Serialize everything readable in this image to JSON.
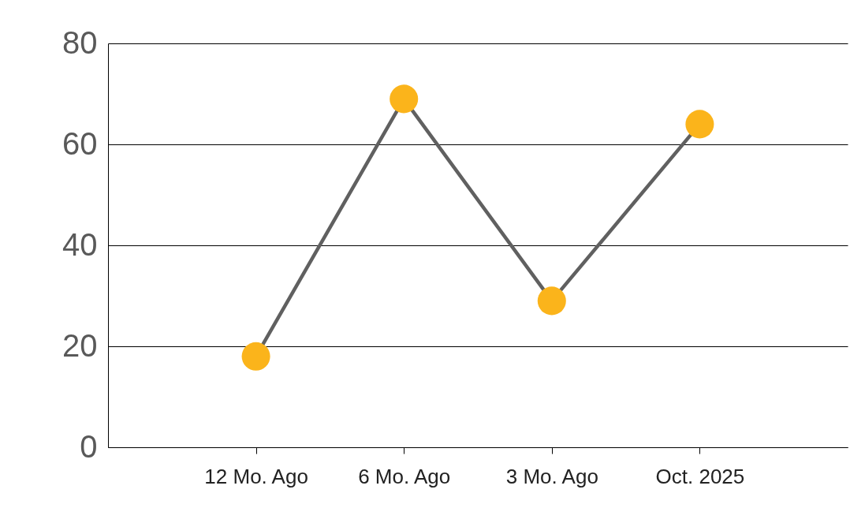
{
  "chart_data": {
    "type": "line",
    "categories": [
      "12 Mo. Ago",
      "6 Mo. Ago",
      "3 Mo. Ago",
      "Oct. 2025"
    ],
    "series": [
      {
        "color": "#606060",
        "colors": [
          "#fbb41b",
          "#fbb41b",
          "#fbb41b",
          "#fbb41b"
        ],
        "values": [
          18,
          69,
          29,
          64
        ]
      }
    ],
    "ylim": [
      0,
      80
    ],
    "yticks": [
      0,
      20,
      40,
      60,
      80
    ],
    "grid": "y",
    "marker": "circle",
    "line_style": "solid"
  }
}
